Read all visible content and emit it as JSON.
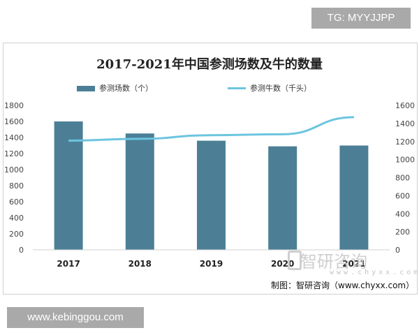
{
  "top_tag": "TG: MYYJJPP",
  "bottom_tag": "www.kebinggou.com",
  "watermark": {
    "brand": "智研咨询",
    "sub": "www.chyxx.com"
  },
  "credit": "制图：智研咨询（www.chyxx.com）",
  "colors": {
    "bar": "#4c7f96",
    "line": "#6cc5df"
  },
  "chart_data": {
    "type": "bar",
    "title": "2017-2021年中国参测场数及牛的数量",
    "categories": [
      "2017",
      "2018",
      "2019",
      "2020",
      "2021"
    ],
    "series": [
      {
        "name": "参测场数（个）",
        "type": "bar",
        "axis": "left",
        "values": [
          1600,
          1450,
          1360,
          1290,
          1300
        ]
      },
      {
        "name": "参测牛数（千头）",
        "type": "line",
        "axis": "right",
        "values": [
          1210,
          1230,
          1270,
          1280,
          1470
        ]
      }
    ],
    "yleft": {
      "ylim": [
        0,
        1800
      ],
      "ticks": [
        "0",
        "200",
        "400",
        "600",
        "800",
        "1000",
        "1200",
        "1400",
        "1600",
        "1800"
      ]
    },
    "yright": {
      "ylim": [
        0,
        1600
      ],
      "ticks": [
        "0",
        "200",
        "400",
        "600",
        "800",
        "1000",
        "1200",
        "1400",
        "1600"
      ]
    },
    "legend": "top",
    "grid": false
  }
}
